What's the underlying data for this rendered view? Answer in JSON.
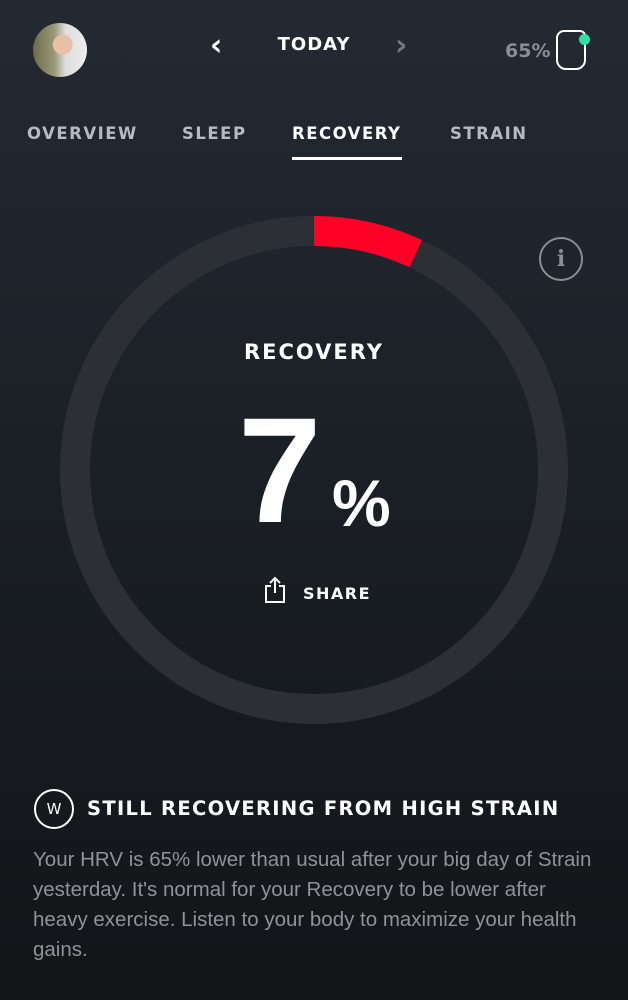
{
  "header": {
    "date_label": "TODAY",
    "prev_icon": "chevron-left-icon",
    "next_icon": "chevron-right-icon",
    "battery": "65%",
    "device_status_color": "#2de0a0"
  },
  "tabs": [
    {
      "label": "OVERVIEW"
    },
    {
      "label": "SLEEP"
    },
    {
      "label": "RECOVERY",
      "active": true
    },
    {
      "label": "STRAIN"
    }
  ],
  "recovery": {
    "title": "RECOVERY",
    "value": "7",
    "unit": "%",
    "percent": 7,
    "color": "#ff0026",
    "track_color": "#2c3034",
    "share_label": "SHARE",
    "info": "i"
  },
  "coach": {
    "logo": "W",
    "title": "STILL RECOVERING FROM HIGH STRAIN",
    "body": "Your HRV is 65% lower than usual after your big day of Strain yesterday. It's normal for your Recovery to be lower after heavy exercise. Listen to your body to maximize your health gains."
  }
}
